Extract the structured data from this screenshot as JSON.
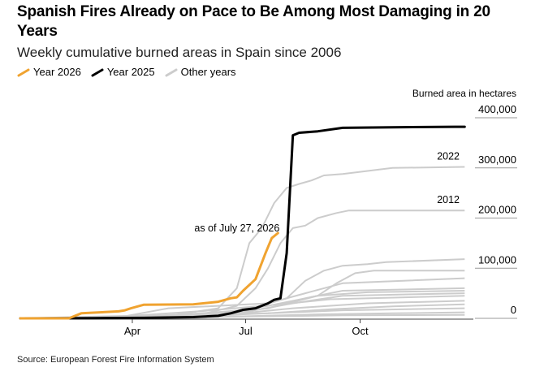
{
  "title": "Spanish Fires Already on Pace to Be Among Most Damaging in 20 Years",
  "subtitle": "Weekly cumulative burned areas in Spain since 2006",
  "legend": [
    {
      "label": "Year 2026",
      "color": "#f0a330"
    },
    {
      "label": "Year 2025",
      "color": "#000000"
    },
    {
      "label": "Other years",
      "color": "#cccccc"
    }
  ],
  "source": "Source: European Forest Fire Information System",
  "chart_data": {
    "type": "line",
    "ylabel": "Burned area in hectares",
    "ylim": [
      0,
      400000
    ],
    "yticks": [
      0,
      100000,
      200000,
      300000,
      400000
    ],
    "ytick_labels": [
      "0",
      "100,000",
      "200,000",
      "300,000",
      "400,000"
    ],
    "xlim": [
      1,
      365
    ],
    "xticks": [
      91,
      182,
      274
    ],
    "xtick_labels": [
      "Apr",
      "Jul",
      "Oct"
    ],
    "annotations": [
      {
        "text": "as of July 27, 2026",
        "series": "Year 2026"
      },
      {
        "text": "2022",
        "series": "2022"
      },
      {
        "text": "2012",
        "series": "2012"
      }
    ],
    "series": [
      {
        "name": "Year 2026",
        "color": "#f0a330",
        "x": [
          1,
          40,
          50,
          80,
          85,
          90,
          100,
          140,
          160,
          170,
          175,
          180,
          190,
          198,
          203,
          208
        ],
        "y": [
          0,
          0,
          10000,
          14000,
          16000,
          20000,
          27000,
          28000,
          33000,
          40000,
          42000,
          55000,
          78000,
          130000,
          160000,
          170000
        ]
      },
      {
        "name": "Year 2025",
        "color": "#000000",
        "x": [
          1,
          60,
          100,
          140,
          160,
          170,
          180,
          190,
          200,
          205,
          210,
          215,
          220,
          225,
          240,
          260,
          300,
          350,
          358
        ],
        "y": [
          0,
          500,
          1000,
          2500,
          5000,
          10000,
          17000,
          20000,
          30000,
          37000,
          40000,
          130000,
          365000,
          370000,
          373000,
          380000,
          381000,
          382000,
          382000
        ]
      },
      {
        "name": "2022",
        "color": "#cccccc",
        "x": [
          1,
          60,
          120,
          160,
          175,
          185,
          195,
          205,
          215,
          225,
          235,
          245,
          260,
          300,
          358
        ],
        "y": [
          0,
          1000,
          5000,
          20000,
          60000,
          150000,
          180000,
          230000,
          260000,
          268000,
          275000,
          285000,
          288000,
          300000,
          302000
        ]
      },
      {
        "name": "2012",
        "color": "#cccccc",
        "x": [
          1,
          80,
          150,
          175,
          190,
          200,
          210,
          220,
          230,
          240,
          255,
          265,
          358
        ],
        "y": [
          0,
          2000,
          10000,
          25000,
          60000,
          100000,
          150000,
          180000,
          185000,
          200000,
          210000,
          215000,
          215000
        ]
      },
      {
        "name": "",
        "color": "#cccccc",
        "x": [
          1,
          100,
          180,
          215,
          230,
          245,
          260,
          280,
          295,
          358
        ],
        "y": [
          0,
          3000,
          15000,
          40000,
          75000,
          95000,
          105000,
          108000,
          112000,
          118000
        ]
      },
      {
        "name": "",
        "color": "#cccccc",
        "x": [
          1,
          120,
          200,
          240,
          255,
          270,
          285,
          358
        ],
        "y": [
          0,
          5000,
          20000,
          45000,
          70000,
          90000,
          95000,
          95000
        ]
      },
      {
        "name": "",
        "color": "#cccccc",
        "x": [
          1,
          80,
          120,
          160,
          200,
          230,
          260,
          358
        ],
        "y": [
          0,
          2000,
          20000,
          25000,
          30000,
          50000,
          70000,
          80000
        ]
      },
      {
        "name": "",
        "color": "#cccccc",
        "x": [
          1,
          100,
          150,
          200,
          230,
          260,
          358
        ],
        "y": [
          0,
          3000,
          6000,
          20000,
          40000,
          55000,
          60000
        ]
      },
      {
        "name": "",
        "color": "#cccccc",
        "x": [
          1,
          100,
          160,
          200,
          240,
          280,
          358
        ],
        "y": [
          0,
          2000,
          10000,
          25000,
          45000,
          52000,
          55000
        ]
      },
      {
        "name": "",
        "color": "#cccccc",
        "x": [
          1,
          120,
          180,
          220,
          260,
          358
        ],
        "y": [
          0,
          3000,
          12000,
          30000,
          45000,
          50000
        ]
      },
      {
        "name": "",
        "color": "#cccccc",
        "x": [
          1,
          90,
          150,
          210,
          250,
          358
        ],
        "y": [
          0,
          5000,
          15000,
          28000,
          38000,
          45000
        ]
      },
      {
        "name": "",
        "color": "#cccccc",
        "x": [
          1,
          110,
          170,
          220,
          280,
          358
        ],
        "y": [
          0,
          2000,
          8000,
          20000,
          30000,
          35000
        ]
      },
      {
        "name": "",
        "color": "#cccccc",
        "x": [
          1,
          140,
          200,
          250,
          300,
          358
        ],
        "y": [
          0,
          4000,
          10000,
          18000,
          24000,
          28000
        ]
      },
      {
        "name": "",
        "color": "#cccccc",
        "x": [
          1,
          60,
          130,
          200,
          260,
          358
        ],
        "y": [
          0,
          1000,
          5000,
          10000,
          16000,
          20000
        ]
      },
      {
        "name": "",
        "color": "#cccccc",
        "x": [
          1,
          100,
          180,
          240,
          300,
          358
        ],
        "y": [
          0,
          1500,
          4000,
          8000,
          10000,
          12000
        ]
      },
      {
        "name": "",
        "color": "#cccccc",
        "x": [
          1,
          120,
          200,
          260,
          358
        ],
        "y": [
          0,
          2000,
          4000,
          6000,
          7000
        ]
      }
    ]
  }
}
